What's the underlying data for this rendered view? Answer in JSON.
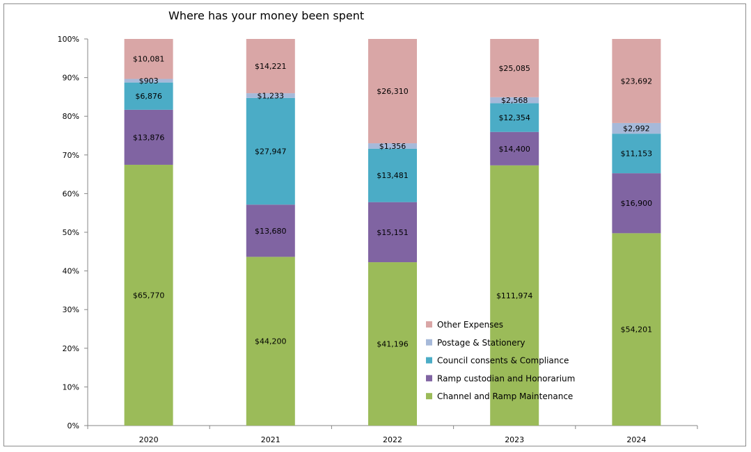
{
  "chart_data": {
    "type": "bar",
    "stacked": "percent",
    "title": "Where has your money been spent",
    "xlabel": "",
    "ylabel": "",
    "categories": [
      "2020",
      "2021",
      "2022",
      "2023",
      "2024"
    ],
    "yticks": [
      "0%",
      "10%",
      "20%",
      "30%",
      "40%",
      "50%",
      "60%",
      "70%",
      "80%",
      "90%",
      "100%"
    ],
    "ylim": [
      0,
      100
    ],
    "grid": false,
    "legend_position": "inside-right",
    "series": [
      {
        "name": "Channel and Ramp Maintenance",
        "color": "#9bbb59",
        "values": [
          65770,
          44200,
          41196,
          111974,
          54201
        ],
        "labels": [
          "$65,770",
          "$44,200",
          "$41,196",
          "$111,974",
          "$54,201"
        ]
      },
      {
        "name": "Ramp custodian and Honorarium",
        "color": "#8064a2",
        "values": [
          13876,
          13680,
          15151,
          14400,
          16900
        ],
        "labels": [
          "$13,876",
          "$13,680",
          "$15,151",
          "$14,400",
          "$16,900"
        ]
      },
      {
        "name": "Council consents & Compliance",
        "color": "#4bacc6",
        "values": [
          6876,
          27947,
          13481,
          12354,
          11153
        ],
        "labels": [
          "$6,876",
          "$27,947",
          "$13,481",
          "$12,354",
          "$11,153"
        ]
      },
      {
        "name": "Postage & Stationery",
        "color": "#a6b9d9",
        "values": [
          903,
          1233,
          1356,
          2568,
          2992
        ],
        "labels": [
          "$903",
          "$1,233",
          "$1,356",
          "$2,568",
          "$2,992"
        ]
      },
      {
        "name": "Other Expenses",
        "color": "#d9a6a6",
        "values": [
          10081,
          14221,
          26310,
          25085,
          23692
        ],
        "labels": [
          "$10,081",
          "$14,221",
          "$26,310",
          "$25,085",
          "$23,692"
        ]
      }
    ],
    "legend_order": [
      "Other Expenses",
      "Postage & Stationery",
      "Council consents & Compliance",
      "Ramp custodian and Honorarium",
      "Channel and Ramp Maintenance"
    ]
  }
}
